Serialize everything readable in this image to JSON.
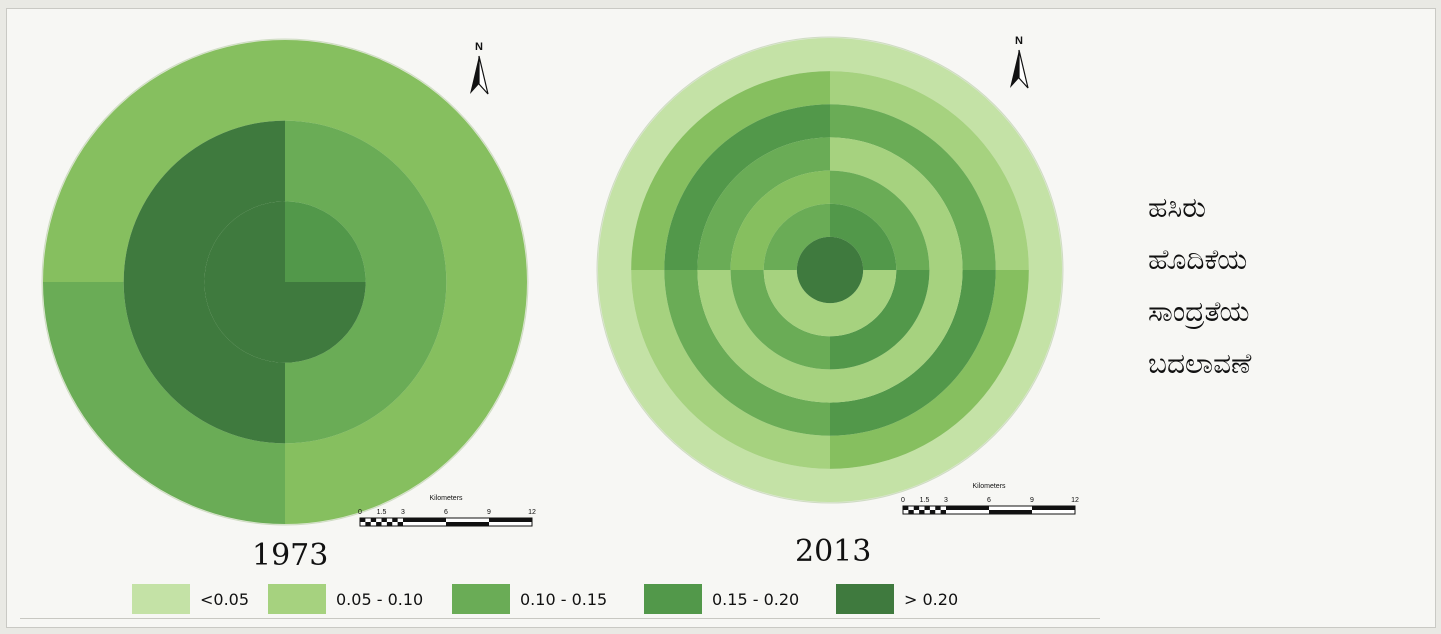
{
  "title_lines": [
    "ಹಸಿರು",
    "ಹೊದಿಕೆಯ",
    "ಸಾಂದ್ರತೆಯ",
    "ಬದಲಾವಣೆ"
  ],
  "maps": [
    {
      "year": "1973",
      "wedges": [
        {
          "start": 0,
          "end": 90,
          "rings": [
            "#86bf5f",
            "#6aac56",
            "#52984a"
          ]
        },
        {
          "start": 90,
          "end": 180,
          "rings": [
            "#86bf5f",
            "#6aac56",
            "#3f7a3e"
          ]
        },
        {
          "start": 180,
          "end": 270,
          "rings": [
            "#6aac56",
            "#3f7a3e",
            "#3f7a3e"
          ]
        },
        {
          "start": 270,
          "end": 360,
          "rings": [
            "#86bf5f",
            "#3f7a3e",
            "#3f7a3e"
          ]
        }
      ]
    },
    {
      "year": "2013",
      "wedges": [
        {
          "start": 0,
          "end": 90,
          "rings": [
            "#c4e2a6",
            "#a6d27f",
            "#6aac56",
            "#a6d27f",
            "#6aac56",
            "#52984a",
            "#3f7a3e"
          ]
        },
        {
          "start": 90,
          "end": 180,
          "rings": [
            "#c4e2a6",
            "#86bf5f",
            "#52984a",
            "#a6d27f",
            "#52984a",
            "#a6d27f",
            "#3f7a3e"
          ]
        },
        {
          "start": 180,
          "end": 270,
          "rings": [
            "#c4e2a6",
            "#a6d27f",
            "#6aac56",
            "#a6d27f",
            "#6aac56",
            "#a6d27f",
            "#3f7a3e"
          ]
        },
        {
          "start": 270,
          "end": 360,
          "rings": [
            "#c4e2a6",
            "#86bf5f",
            "#52984a",
            "#6aac56",
            "#86bf5f",
            "#6aac56",
            "#3f7a3e"
          ]
        }
      ]
    }
  ],
  "north_label": "N",
  "scalebar": {
    "title": "Kilometers",
    "ticks": [
      "0",
      "1.5",
      "3",
      "6",
      "9",
      "12"
    ]
  },
  "legend": [
    {
      "label": "<0.05",
      "color": "#c4e2a6"
    },
    {
      "label": "0.05 - 0.10",
      "color": "#a6d27f"
    },
    {
      "label": "0.10 - 0.15",
      "color": "#6aac56"
    },
    {
      "label": "0.15 - 0.20",
      "color": "#52984a"
    },
    {
      "label": "> 0.20",
      "color": "#3f7a3e"
    }
  ]
}
